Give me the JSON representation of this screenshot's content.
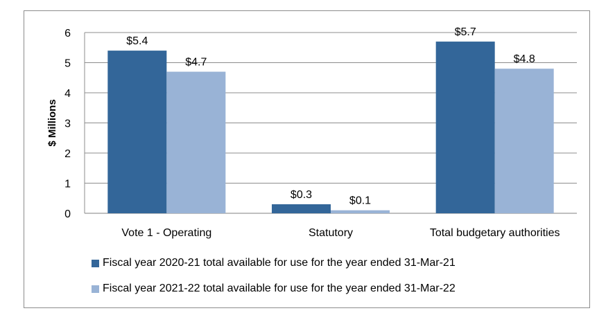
{
  "chart_data": {
    "type": "bar",
    "title": "",
    "ylabel": "$ Millions",
    "xlabel": "",
    "ylim": [
      0,
      6
    ],
    "yticks": [
      0,
      1,
      2,
      3,
      4,
      5,
      6
    ],
    "grid": true,
    "legend_position": "bottom",
    "categories": [
      "Vote 1 - Operating",
      "Statutory",
      "Total budgetary authorities"
    ],
    "series": [
      {
        "name": "Fiscal year 2020-21 total available for use for the year ended 31-Mar-21",
        "values": [
          5.4,
          0.3,
          5.7
        ],
        "labels": [
          "$5.4",
          "$0.3",
          "$5.7"
        ],
        "color": "#336699"
      },
      {
        "name": "Fiscal year 2021-22 total available for use for the year ended 31-Mar-22",
        "values": [
          4.7,
          0.1,
          4.8
        ],
        "labels": [
          "$4.7",
          "$0.1",
          "$4.8"
        ],
        "color": "#99b3d6"
      }
    ]
  }
}
